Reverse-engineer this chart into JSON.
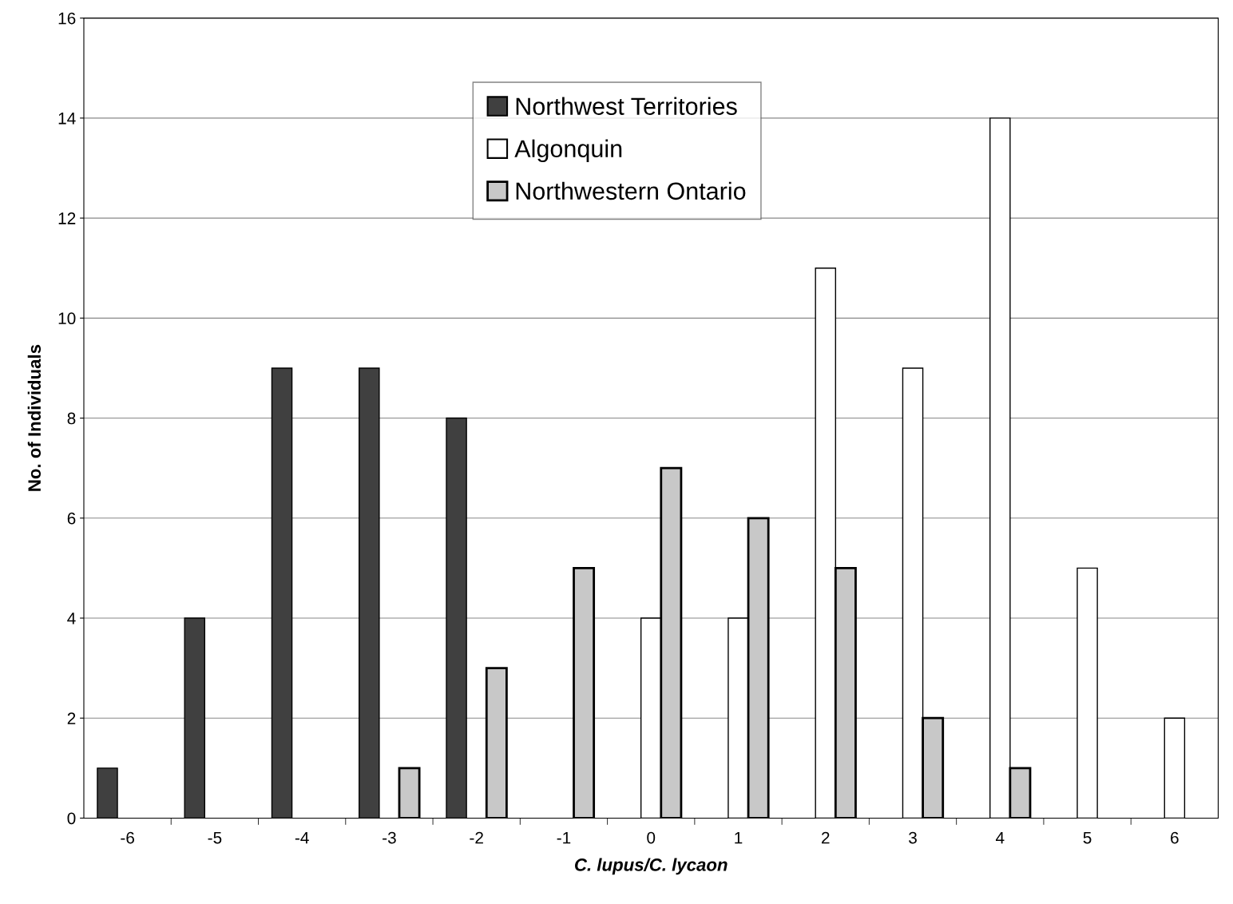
{
  "chart_data": {
    "type": "bar",
    "xlabel": "C. lupus/C. lycaon",
    "ylabel": "No. of Individuals",
    "categories": [
      "-6",
      "-5",
      "-4",
      "-3",
      "-2",
      "-1",
      "0",
      "1",
      "2",
      "3",
      "4",
      "5",
      "6"
    ],
    "series": [
      {
        "name": "Northwest Territories",
        "color": "#404040",
        "values": [
          1,
          4,
          9,
          9,
          8,
          null,
          null,
          null,
          null,
          null,
          null,
          null,
          null
        ]
      },
      {
        "name": "Algonquin",
        "color": "#ffffff",
        "values": [
          null,
          null,
          null,
          null,
          null,
          null,
          4,
          4,
          11,
          9,
          14,
          5,
          2
        ]
      },
      {
        "name": "Northwestern Ontario",
        "color": "#c8c8c8",
        "values": [
          null,
          null,
          null,
          1,
          3,
          5,
          7,
          6,
          5,
          2,
          1,
          null,
          null
        ]
      }
    ],
    "ylim": [
      0,
      16
    ],
    "yticks": [
      0,
      2,
      4,
      6,
      8,
      10,
      12,
      14,
      16
    ],
    "grid": "y",
    "legend": "top"
  }
}
